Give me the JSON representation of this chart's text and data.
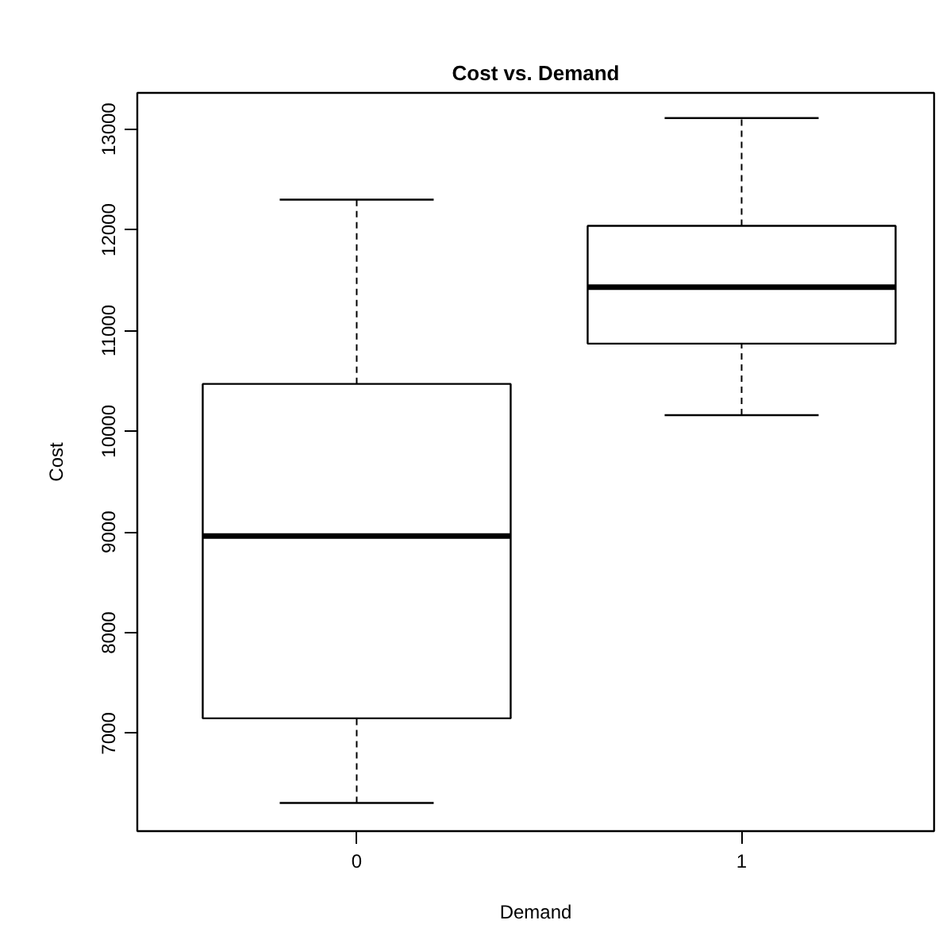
{
  "chart_data": {
    "type": "box",
    "title": "Cost vs. Demand",
    "xlabel": "Demand",
    "ylabel": "Cost",
    "categories": [
      "0",
      "1"
    ],
    "boxes": [
      {
        "low": 6310,
        "q1": 7150,
        "median": 8960,
        "q3": 10470,
        "high": 12300
      },
      {
        "low": 10160,
        "q1": 10870,
        "median": 11430,
        "q3": 12040,
        "high": 13110
      }
    ],
    "ylim": [
      6030,
      13360
    ],
    "yticks": [
      7000,
      8000,
      9000,
      10000,
      11000,
      12000,
      13000
    ],
    "grid": false
  }
}
